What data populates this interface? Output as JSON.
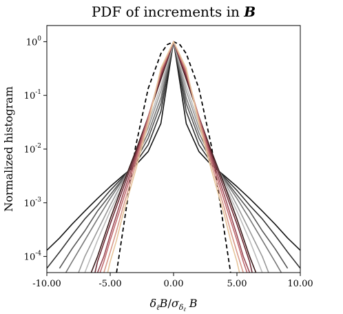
{
  "chart_data": {
    "type": "line",
    "title": "PDF of increments in ",
    "title_symbol": "B",
    "xlabel": "δℓB/σδℓB",
    "ylabel": "Normalized histogram",
    "x_scale": "linear",
    "y_scale": "log",
    "xlim": [
      -10,
      10
    ],
    "ylim": [
      5e-05,
      2
    ],
    "xticks": [
      -10,
      -5,
      0,
      5,
      10
    ],
    "xtick_labels": [
      "-10.00",
      "-5.00",
      "0.00",
      "5.00",
      "10.00"
    ],
    "yticks": [
      1,
      0.1,
      0.01,
      0.001,
      0.0001
    ],
    "ytick_labels": [
      {
        "base": "10",
        "exp": "0"
      },
      {
        "base": "10",
        "exp": "-1"
      },
      {
        "base": "10",
        "exp": "-2"
      },
      {
        "base": "10",
        "exp": "-3"
      },
      {
        "base": "10",
        "exp": "-4"
      }
    ],
    "grid": false,
    "colors": {
      "gaussian": "#000000",
      "gray_family": [
        "#111111",
        "#333333",
        "#555555",
        "#777777",
        "#999999",
        "#bbbbbb"
      ],
      "warm_family": [
        "#3a1a1a",
        "#6e2a35",
        "#9a4a55",
        "#c06a70",
        "#d89a8a",
        "#e6c49a"
      ]
    },
    "series": [
      {
        "style": "dashed",
        "color": "#000000",
        "x": [
          -4.5,
          -4,
          -3,
          -2,
          -1,
          -0.5,
          0,
          0.5,
          1,
          2,
          3,
          4,
          4.5
        ],
        "y": [
          5e-05,
          0.0003,
          0.011,
          0.135,
          0.6,
          0.88,
          1,
          0.88,
          0.6,
          0.135,
          0.011,
          0.0003,
          5e-05
        ]
      },
      {
        "color": "#111111",
        "x": [
          -10,
          -9,
          -8,
          -7,
          -6,
          -5,
          -4,
          -3,
          -2,
          -1,
          0,
          1,
          2,
          3,
          4,
          5,
          6,
          7,
          8,
          9,
          10
        ],
        "y": [
          0.00013,
          0.00022,
          0.0004,
          0.0007,
          0.0012,
          0.002,
          0.0032,
          0.005,
          0.009,
          0.03,
          1,
          0.03,
          0.009,
          0.005,
          0.0032,
          0.002,
          0.0012,
          0.0007,
          0.0004,
          0.00022,
          0.00013
        ]
      },
      {
        "color": "#333333",
        "x": [
          -10,
          -9,
          -8,
          -7,
          -6,
          -5,
          -4,
          -3,
          -2,
          -1,
          0,
          1,
          2,
          3,
          4,
          5,
          6,
          7,
          8,
          9,
          10
        ],
        "y": [
          6e-05,
          0.00012,
          0.00025,
          0.0005,
          0.0009,
          0.0017,
          0.003,
          0.0055,
          0.012,
          0.05,
          1,
          0.05,
          0.012,
          0.0055,
          0.003,
          0.0017,
          0.0009,
          0.0005,
          0.00025,
          0.00012,
          6e-05
        ]
      },
      {
        "color": "#555555",
        "x": [
          -9,
          -8,
          -7,
          -6,
          -5,
          -4,
          -3,
          -2,
          -1,
          0,
          1,
          2,
          3,
          4,
          5,
          6,
          7,
          8,
          9
        ],
        "y": [
          6e-05,
          0.00014,
          0.0003,
          0.0007,
          0.0014,
          0.0028,
          0.006,
          0.016,
          0.07,
          1,
          0.07,
          0.016,
          0.006,
          0.0028,
          0.0014,
          0.0007,
          0.0003,
          0.00014,
          6e-05
        ]
      },
      {
        "color": "#777777",
        "x": [
          -8.5,
          -8,
          -7,
          -6,
          -5,
          -4,
          -3,
          -2,
          -1,
          0,
          1,
          2,
          3,
          4,
          5,
          6,
          7,
          8,
          8.5
        ],
        "y": [
          5e-05,
          8e-05,
          0.0002,
          0.0005,
          0.0012,
          0.0027,
          0.0065,
          0.02,
          0.09,
          1,
          0.09,
          0.02,
          0.0065,
          0.0027,
          0.0012,
          0.0005,
          0.0002,
          8e-05,
          5e-05
        ]
      },
      {
        "color": "#999999",
        "x": [
          -7.5,
          -7,
          -6,
          -5,
          -4,
          -3,
          -2,
          -1,
          0,
          1,
          2,
          3,
          4,
          5,
          6,
          7,
          7.5
        ],
        "y": [
          5e-05,
          0.0001,
          0.0003,
          0.0009,
          0.0025,
          0.007,
          0.025,
          0.12,
          1,
          0.12,
          0.025,
          0.007,
          0.0025,
          0.0009,
          0.0003,
          0.0001,
          5e-05
        ]
      },
      {
        "color": "#bbbbbb",
        "x": [
          -7,
          -6.5,
          -6,
          -5,
          -4,
          -3,
          -2,
          -1,
          0,
          1,
          2,
          3,
          4,
          5,
          6,
          6.5,
          7
        ],
        "y": [
          5e-05,
          0.0001,
          0.0002,
          0.0007,
          0.0022,
          0.0075,
          0.03,
          0.15,
          1,
          0.15,
          0.03,
          0.0075,
          0.0022,
          0.0007,
          0.0002,
          0.0001,
          5e-05
        ]
      },
      {
        "color": "#3a1a1a",
        "x": [
          -6.5,
          -6,
          -5,
          -4,
          -3,
          -2,
          -1,
          0,
          1,
          2,
          3,
          4,
          5,
          6,
          6.5
        ],
        "y": [
          5e-05,
          0.0001,
          0.0005,
          0.0022,
          0.009,
          0.04,
          0.2,
          1,
          0.2,
          0.04,
          0.009,
          0.0022,
          0.0005,
          0.0001,
          5e-05
        ]
      },
      {
        "color": "#6e2a35",
        "x": [
          -6.2,
          -6,
          -5,
          -4,
          -3,
          -2,
          -1,
          0,
          1,
          2,
          3,
          4,
          5,
          6,
          6.2
        ],
        "y": [
          5e-05,
          8e-05,
          0.0004,
          0.0018,
          0.008,
          0.04,
          0.22,
          1,
          0.22,
          0.04,
          0.008,
          0.0018,
          0.0004,
          8e-05,
          5e-05
        ]
      },
      {
        "color": "#9a4a55",
        "x": [
          -6,
          -5.5,
          -5,
          -4,
          -3,
          -2,
          -1,
          0,
          1,
          2,
          3,
          4,
          5,
          5.5,
          6
        ],
        "y": [
          5e-05,
          0.0001,
          0.00025,
          0.0014,
          0.007,
          0.04,
          0.25,
          1,
          0.25,
          0.04,
          0.007,
          0.0014,
          0.00025,
          0.0001,
          5e-05
        ]
      },
      {
        "color": "#c06a70",
        "x": [
          -5.8,
          -5.5,
          -5,
          -4,
          -3,
          -2,
          -1,
          0,
          1,
          2,
          3,
          4,
          5,
          5.5,
          5.8
        ],
        "y": [
          5e-05,
          8e-05,
          0.0002,
          0.0011,
          0.006,
          0.038,
          0.27,
          1,
          0.27,
          0.038,
          0.006,
          0.0011,
          0.0002,
          8e-05,
          5e-05
        ]
      },
      {
        "color": "#d89a8a",
        "x": [
          -5.5,
          -5,
          -4.5,
          -4,
          -3,
          -2,
          -1,
          0,
          1,
          2,
          3,
          4,
          4.5,
          5,
          5.5
        ],
        "y": [
          5e-05,
          0.00012,
          0.0003,
          0.0008,
          0.005,
          0.035,
          0.3,
          1,
          0.3,
          0.035,
          0.005,
          0.0008,
          0.0003,
          0.00012,
          5e-05
        ]
      },
      {
        "color": "#e6c49a",
        "x": [
          -5.2,
          -5,
          -4.5,
          -4,
          -3,
          -2,
          -1,
          0,
          1,
          2,
          3,
          4,
          4.5,
          5,
          5.2
        ],
        "y": [
          5e-05,
          8e-05,
          0.0002,
          0.0006,
          0.004,
          0.03,
          0.32,
          1,
          0.32,
          0.03,
          0.004,
          0.0006,
          0.0002,
          8e-05,
          5e-05
        ]
      }
    ]
  }
}
